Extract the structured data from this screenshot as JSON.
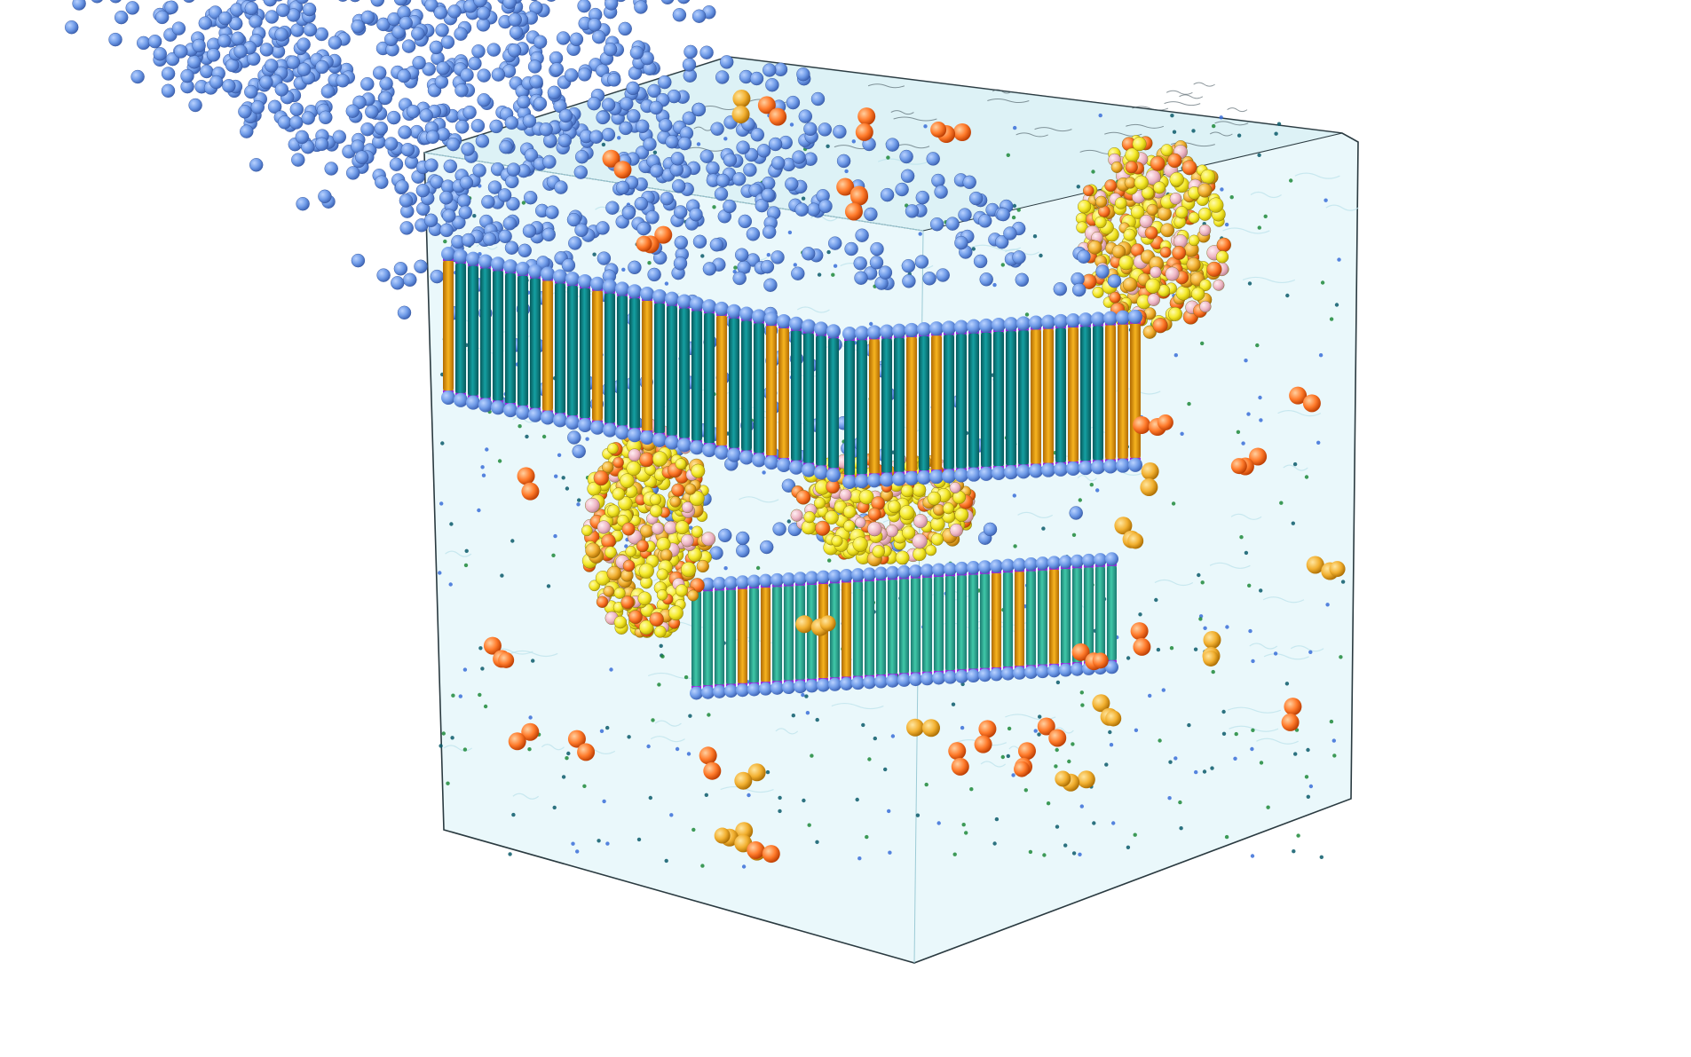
{
  "scene": {
    "subject": "membrane-simulation-box",
    "background_color": "#ffffff",
    "box": {
      "fill_color": "#dff4f8",
      "edge_color": "#2a3a40"
    },
    "membrane": {
      "tail_color": "#0f8a8c",
      "tail_color_lower": "#2bb39a",
      "interface_color": "#a020e0",
      "head_color": "#6f9be8",
      "cholesterol_color": "#f2a20f"
    },
    "protein": {
      "colors": [
        "#f5f03a",
        "#f2d62a",
        "#f0b0c0",
        "#ff8a30",
        "#e85a20",
        "#f7e66a"
      ]
    },
    "solute_colors": [
      "#ff5a1f",
      "#f08a20",
      "#f2b030",
      "#ffd580"
    ],
    "ion_colors": [
      "#1f8a3a",
      "#3a6fd8",
      "#0a5a6a"
    ]
  }
}
